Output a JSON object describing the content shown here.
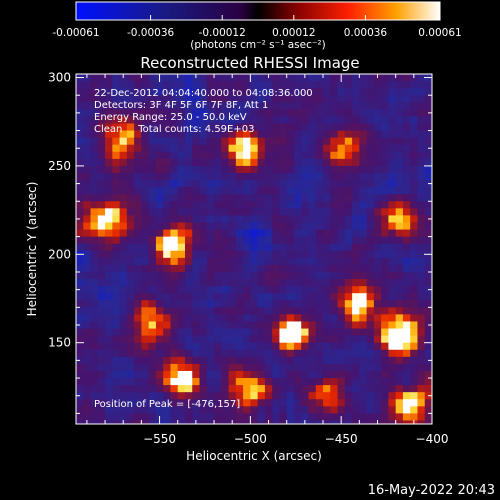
{
  "colorbar": {
    "tick_labels": [
      "-0.00061",
      "-0.00036",
      "-0.00012",
      "0.00012",
      "0.00036",
      "0.00061"
    ],
    "tick_values": [
      -0.00061,
      -0.00036,
      -0.00012,
      0.00012,
      0.00036,
      0.00061
    ],
    "range": [
      -0.00061,
      0.00061
    ],
    "colors": [
      "#0000ff",
      "#000000",
      "#ff0000",
      "#ffff00",
      "#ffffff"
    ],
    "unit_label": "(photons cm⁻² s⁻¹ asec⁻²)"
  },
  "chart_data": {
    "type": "heatmap",
    "title": "Reconstructed RHESSI Image",
    "xlabel": "Heliocentric X (arcsec)",
    "ylabel": "Heliocentric Y (arcsec)",
    "xlim": [
      -596,
      -400
    ],
    "ylim": [
      104,
      302
    ],
    "x_ticks": [
      -550,
      -500,
      -450,
      -400
    ],
    "y_ticks": [
      150,
      200,
      250,
      300
    ],
    "x_tick_labels": [
      "−550",
      "−500",
      "−450",
      "−400"
    ],
    "y_tick_labels": [
      "150",
      "200",
      "250",
      "300"
    ],
    "annotations": [
      "22-Dec-2012 04:04:40.000 to 04:08:36.000",
      "Detectors: 3F 4F 5F 6F 7F 8F, Att 1",
      "Energy Range: 25.0 - 50.0 keV",
      "Clean     Total counts: 4.59E+03"
    ],
    "peak_label": "Position of Peak = [-476,157]",
    "peak_position": [
      -476,
      157
    ],
    "bright_sources": [
      {
        "x": -477,
        "y": 155,
        "intensity": 1.0,
        "sigma": 6
      },
      {
        "x": -418,
        "y": 155,
        "intensity": 0.95,
        "sigma": 8
      },
      {
        "x": -504,
        "y": 260,
        "intensity": 0.85,
        "sigma": 7
      },
      {
        "x": -542,
        "y": 205,
        "intensity": 0.8,
        "sigma": 8
      },
      {
        "x": -538,
        "y": 130,
        "intensity": 0.85,
        "sigma": 7
      },
      {
        "x": -440,
        "y": 172,
        "intensity": 0.7,
        "sigma": 8
      },
      {
        "x": -580,
        "y": 220,
        "intensity": 0.7,
        "sigma": 9
      },
      {
        "x": -570,
        "y": 265,
        "intensity": 0.6,
        "sigma": 8
      },
      {
        "x": -450,
        "y": 260,
        "intensity": 0.6,
        "sigma": 7
      },
      {
        "x": -500,
        "y": 125,
        "intensity": 0.65,
        "sigma": 7
      },
      {
        "x": -412,
        "y": 115,
        "intensity": 0.7,
        "sigma": 7
      },
      {
        "x": -460,
        "y": 120,
        "intensity": 0.55,
        "sigma": 7
      },
      {
        "x": -420,
        "y": 220,
        "intensity": 0.6,
        "sigma": 7
      },
      {
        "x": -555,
        "y": 160,
        "intensity": 0.6,
        "sigma": 8
      }
    ]
  },
  "footer": {
    "timestamp": "16-May-2022 20:43"
  }
}
